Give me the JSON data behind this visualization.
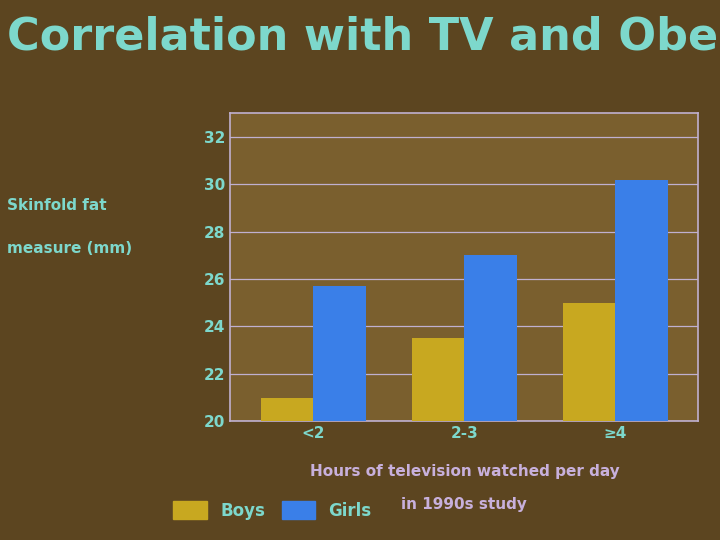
{
  "title": "Correlation with TV and Obesity",
  "title_color": "#7DD8CC",
  "ylabel_line1": "Skinfold fat",
  "ylabel_line2": "measure (mm)",
  "xlabel_line1": "Hours of television watched per day",
  "xlabel_line2": "in 1990s study",
  "categories": [
    "<2",
    "2-3",
    "≥4"
  ],
  "boys_values": [
    21.0,
    23.5,
    25.0
  ],
  "girls_values": [
    25.7,
    27.0,
    30.2
  ],
  "boys_color": "#C8A820",
  "girls_color": "#3A7FE8",
  "background_color": "#5C4520",
  "plot_background_color": "#7A5F2E",
  "grid_color": "#C0B0D0",
  "axis_border_color": "#C0B0D0",
  "ylabel_color": "#7DD8CC",
  "xlabel_color": "#C8B0DC",
  "tick_label_color": "#7DD8CC",
  "legend_label_color": "#7DD8CC",
  "ylim": [
    20,
    33
  ],
  "yticks": [
    20,
    22,
    24,
    26,
    28,
    30,
    32
  ],
  "bar_width": 0.35,
  "title_fontsize": 32,
  "ylabel_fontsize": 11,
  "xlabel_fontsize": 11,
  "tick_fontsize": 11,
  "legend_fontsize": 12
}
